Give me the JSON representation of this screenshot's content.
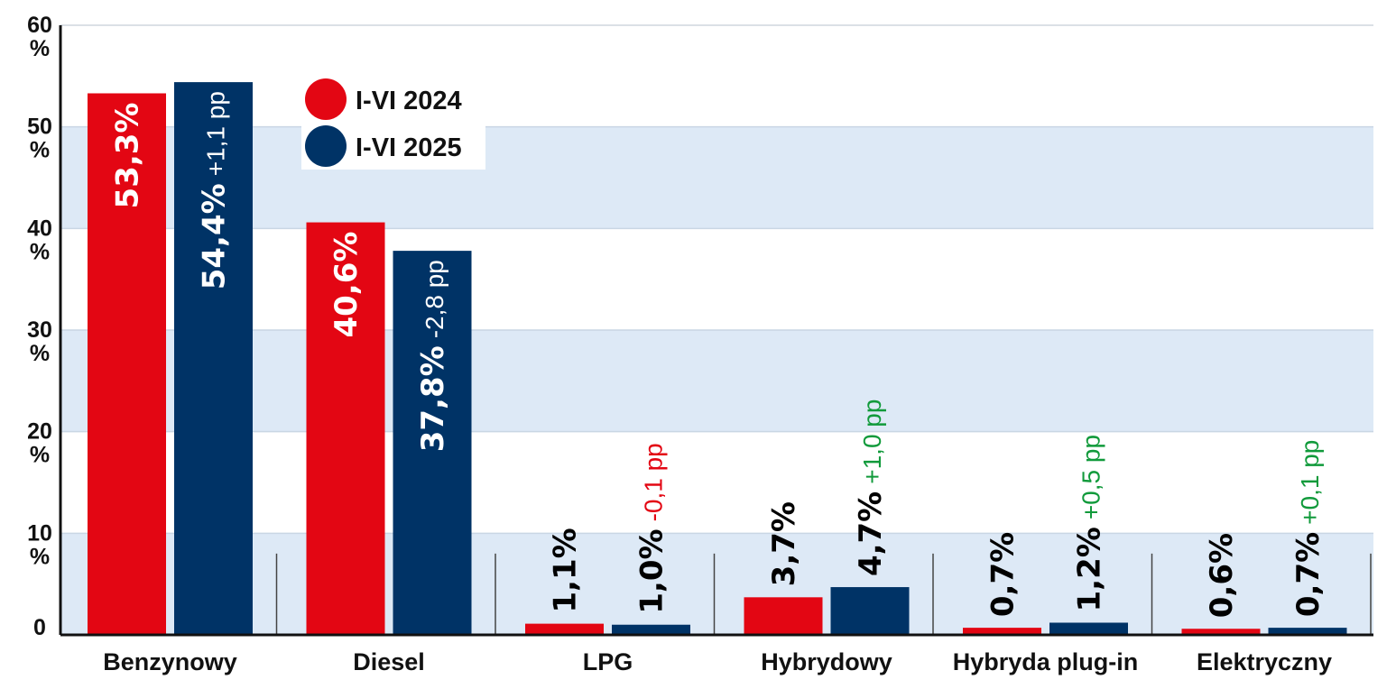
{
  "chart_data": {
    "type": "bar",
    "categories": [
      "Benzynowy",
      "Diesel",
      "LPG",
      "Hybrydowy",
      "Hybryda plug-in",
      "Elektryczny"
    ],
    "series": [
      {
        "name": "I-VI 2024",
        "color": "#e30613",
        "values": [
          53.3,
          40.6,
          1.1,
          3.7,
          0.7,
          0.6
        ],
        "labels": [
          "53,3%",
          "40,6%",
          "1,1%",
          "3,7%",
          "0,7%",
          "0,6%"
        ]
      },
      {
        "name": "I-VI 2025",
        "color": "#003366",
        "values": [
          54.4,
          37.8,
          1.0,
          4.7,
          1.2,
          0.7
        ],
        "labels": [
          "54,4%",
          "37,8%",
          "1,0%",
          "4,7%",
          "1,2%",
          "0,7%"
        ],
        "changes": [
          "+1,1 pp",
          "-2,8 pp",
          "-0,1 pp",
          "+1,0 pp",
          "+0,5 pp",
          "+0,1 pp"
        ],
        "change_values": [
          1.1,
          -2.8,
          -0.1,
          1.0,
          0.5,
          0.1
        ]
      }
    ],
    "ylim": [
      0,
      60
    ],
    "yticks": [
      {
        "value": 60,
        "num": "60",
        "unit": "%"
      },
      {
        "value": 50,
        "num": "50",
        "unit": "%"
      },
      {
        "value": 40,
        "num": "40",
        "unit": "%"
      },
      {
        "value": 30,
        "num": "30",
        "unit": "%"
      },
      {
        "value": 20,
        "num": "20",
        "unit": "%"
      },
      {
        "value": 10,
        "num": "10",
        "unit": "%"
      },
      {
        "value": 0,
        "num": "0",
        "unit": ""
      }
    ],
    "grid": true,
    "band_color": "#dde9f6",
    "change_colors": {
      "positive": "#119a3b",
      "negative": "#e30613",
      "on_bar": "#ffffff"
    },
    "legend": {
      "position": "top-left",
      "items": [
        "I-VI 2024",
        "I-VI 2025"
      ]
    }
  }
}
